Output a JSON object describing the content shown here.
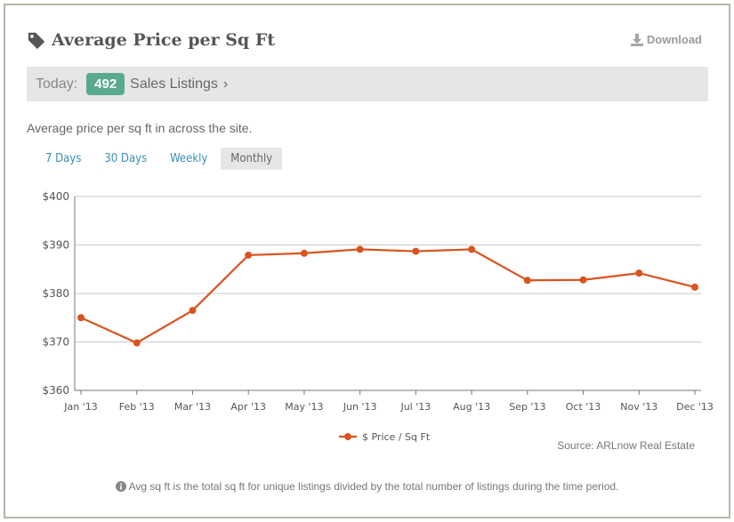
{
  "header": {
    "title": "Average Price per Sq Ft",
    "icon": "tag-icon",
    "download_label": "Download"
  },
  "today": {
    "label": "Today:",
    "count": "492",
    "link_label": "Sales Listings",
    "link_chevron": "›",
    "badge_color": "#5aaa8e"
  },
  "description": "Average price per sq ft in across the site.",
  "tabs": [
    {
      "label": "7 Days",
      "active": false
    },
    {
      "label": "30 Days",
      "active": false
    },
    {
      "label": "Weekly",
      "active": false
    },
    {
      "label": "Monthly",
      "active": true
    }
  ],
  "chart_data": {
    "type": "line",
    "x": [
      "Jan '13",
      "Feb '13",
      "Mar '13",
      "Apr '13",
      "May '13",
      "Jun '13",
      "Jul '13",
      "Aug '13",
      "Sep '13",
      "Oct '13",
      "Nov '13",
      "Dec '13"
    ],
    "series": [
      {
        "name": "$ Price / Sq Ft",
        "color": "#d9531e",
        "values": [
          375,
          369.8,
          376.5,
          387.9,
          388.3,
          389.1,
          388.7,
          389.1,
          382.7,
          382.8,
          384.2,
          381.3
        ]
      }
    ],
    "ylim": [
      360,
      400
    ],
    "yticks": [
      "$360",
      "$370",
      "$380",
      "$390",
      "$400"
    ],
    "grid": true,
    "legend_position": "bottom"
  },
  "source": "Source: ARLnow Real Estate",
  "footnote": "Avg sq ft is the total sq ft for unique listings divided by the total number of listings during the time period."
}
